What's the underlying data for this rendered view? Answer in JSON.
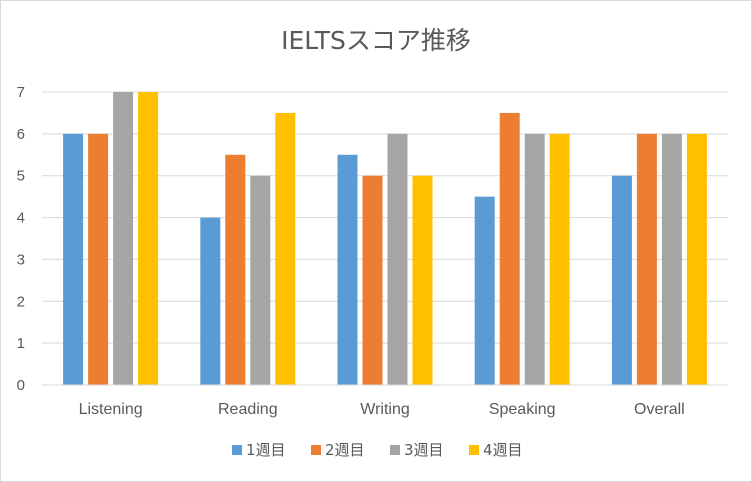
{
  "chart_data": {
    "type": "bar",
    "title": "IELTSスコア推移",
    "xlabel": "",
    "ylabel": "",
    "ylim": [
      0,
      7
    ],
    "yticks": [
      0,
      1,
      2,
      3,
      4,
      5,
      6,
      7
    ],
    "grid": true,
    "legend_position": "bottom",
    "categories": [
      "Listening",
      "Reading",
      "Writing",
      "Speaking",
      "Overall"
    ],
    "series": [
      {
        "name": "1週目",
        "color": "#5b9bd5",
        "values": [
          6,
          4,
          5.5,
          4.5,
          5
        ]
      },
      {
        "name": "2週目",
        "color": "#ed7d31",
        "values": [
          6,
          5.5,
          5,
          6.5,
          6
        ]
      },
      {
        "name": "3週目",
        "color": "#a5a5a5",
        "values": [
          7,
          5,
          6,
          6,
          6
        ]
      },
      {
        "name": "4週目",
        "color": "#ffc000",
        "values": [
          7,
          6.5,
          5,
          6,
          6
        ]
      }
    ]
  }
}
